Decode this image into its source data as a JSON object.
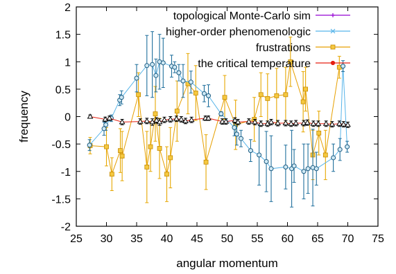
{
  "chart_data": {
    "type": "scatter",
    "xlabel": "angular momentum",
    "ylabel": "frequency",
    "xlim": [
      25,
      75
    ],
    "ylim": [
      -2,
      2
    ],
    "xticks": [
      25,
      30,
      35,
      40,
      45,
      50,
      55,
      60,
      65,
      70,
      75
    ],
    "yticks": [
      -2,
      -1.5,
      -1,
      -0.5,
      0,
      0.5,
      1,
      1.5,
      2
    ],
    "grid": false,
    "legend_position": "top-right",
    "series": [
      {
        "name": "topological Monte-Carlo sim",
        "color": "#9400d3",
        "marker": "plus",
        "points": []
      },
      {
        "name": "higher-order phenomenologic",
        "color": "#56b4e9",
        "marker": "circle",
        "points": [
          {
            "x": 27.2,
            "y": -0.52,
            "err": 0.1
          },
          {
            "x": 29.6,
            "y": -0.22,
            "err": 0.12
          },
          {
            "x": 29.9,
            "y": -0.15,
            "err": 0.1
          },
          {
            "x": 30.8,
            "y": -0.03,
            "err": 0.06
          },
          {
            "x": 32.2,
            "y": 0.3,
            "err": 0.1
          },
          {
            "x": 32.5,
            "y": 0.35,
            "err": 0.12
          },
          {
            "x": 35.0,
            "y": 0.7,
            "err": 0.25
          },
          {
            "x": 36.7,
            "y": 0.93,
            "err": 0.55
          },
          {
            "x": 37.6,
            "y": 0.95,
            "err": 0.6
          },
          {
            "x": 38.2,
            "y": 0.75,
            "err": 0.3
          },
          {
            "x": 38.8,
            "y": 1.0,
            "err": 0.5
          },
          {
            "x": 39.4,
            "y": 0.98,
            "err": 0.45
          },
          {
            "x": 40.8,
            "y": 0.92,
            "err": 0.2
          },
          {
            "x": 41.3,
            "y": 0.9,
            "err": 0.1
          },
          {
            "x": 42.0,
            "y": 0.8,
            "err": 0.15
          },
          {
            "x": 42.7,
            "y": 0.65,
            "err": 0.3
          },
          {
            "x": 44.0,
            "y": 0.63,
            "err": 0.2
          },
          {
            "x": 46.2,
            "y": 0.42,
            "err": 0.15
          },
          {
            "x": 46.9,
            "y": 0.38,
            "err": 0.2
          },
          {
            "x": 49.0,
            "y": 0.05,
            "err": 0.04
          },
          {
            "x": 51.2,
            "y": -0.2,
            "err": 0.15
          },
          {
            "x": 51.6,
            "y": -0.32,
            "err": 0.2
          },
          {
            "x": 52.3,
            "y": -0.4,
            "err": 0.15
          },
          {
            "x": 53.9,
            "y": -0.62,
            "err": 0.2
          },
          {
            "x": 55.3,
            "y": -0.7,
            "err": 0.55
          },
          {
            "x": 56.5,
            "y": -0.82,
            "err": 0.55
          },
          {
            "x": 57.3,
            "y": -0.95,
            "err": 0.6
          },
          {
            "x": 59.7,
            "y": -0.92,
            "err": 0.4
          },
          {
            "x": 60.7,
            "y": -0.95,
            "err": 0.7
          },
          {
            "x": 61.1,
            "y": -0.9,
            "err": 0.3
          },
          {
            "x": 62.7,
            "y": -1.0,
            "err": 0.5
          },
          {
            "x": 63.4,
            "y": -0.95,
            "err": 0.45
          },
          {
            "x": 64.2,
            "y": -0.93,
            "err": 0.7
          },
          {
            "x": 64.8,
            "y": -0.95,
            "err": 0.3
          },
          {
            "x": 67.6,
            "y": -0.75,
            "err": 0.25
          },
          {
            "x": 68.7,
            "y": -0.6,
            "err": 0.2
          },
          {
            "x": 69.2,
            "y": 0.92,
            "err": 0.1
          },
          {
            "x": 69.9,
            "y": -0.55,
            "err": 0.1
          }
        ]
      },
      {
        "name": "frustrations",
        "color": "#e69f00",
        "marker": "square",
        "points": [
          {
            "x": 27.3,
            "y": -0.53,
            "err": 0.15
          },
          {
            "x": 30.0,
            "y": -0.55,
            "err": 0.35
          },
          {
            "x": 30.9,
            "y": -1.05,
            "err": 0.3
          },
          {
            "x": 32.3,
            "y": -0.62,
            "err": 0.4
          },
          {
            "x": 32.6,
            "y": -0.72,
            "err": 0.45
          },
          {
            "x": 35.3,
            "y": 0.4,
            "err": 0.4
          },
          {
            "x": 36.7,
            "y": -0.92,
            "err": 0.65
          },
          {
            "x": 37.3,
            "y": -0.55,
            "err": 0.45
          },
          {
            "x": 38.1,
            "y": 0.05,
            "err": 0.5
          },
          {
            "x": 38.8,
            "y": -0.58,
            "err": 0.55
          },
          {
            "x": 40.0,
            "y": -1.05,
            "err": 0.5
          },
          {
            "x": 40.6,
            "y": -0.75,
            "err": 0.55
          },
          {
            "x": 41.7,
            "y": 0.1,
            "err": 0.55
          },
          {
            "x": 43.5,
            "y": 0.6,
            "err": 0.55
          },
          {
            "x": 44.8,
            "y": 0.43,
            "err": 0.5
          },
          {
            "x": 46.5,
            "y": -0.83,
            "err": 0.5
          },
          {
            "x": 49.6,
            "y": 0.35,
            "err": 0.4
          },
          {
            "x": 51.4,
            "y": -0.15,
            "err": 0.45
          },
          {
            "x": 54.5,
            "y": -0.05,
            "err": 0.4
          },
          {
            "x": 55.6,
            "y": 0.4,
            "err": 0.4
          },
          {
            "x": 56.7,
            "y": 0.33,
            "err": 0.45
          },
          {
            "x": 58.2,
            "y": 0.38,
            "err": 0.5
          },
          {
            "x": 59.7,
            "y": 0.4,
            "err": 0.5
          },
          {
            "x": 60.5,
            "y": 1.0,
            "err": 0.45
          },
          {
            "x": 62.6,
            "y": 0.27,
            "err": 0.55
          },
          {
            "x": 63.0,
            "y": 0.5,
            "err": 0.4
          },
          {
            "x": 64.2,
            "y": -0.7,
            "err": 0.45
          },
          {
            "x": 65.2,
            "y": -0.3,
            "err": 0.4
          },
          {
            "x": 66.3,
            "y": -0.7,
            "err": 0.45
          },
          {
            "x": 68.6,
            "y": 0.9,
            "err": 0.2
          }
        ]
      },
      {
        "name": "the critical temperature",
        "color": "#e51e10",
        "marker": "triangle",
        "points": [
          {
            "x": 27.3,
            "y": 0.0,
            "err": 0.03
          },
          {
            "x": 29.8,
            "y": -0.05,
            "err": 0.04
          },
          {
            "x": 30.5,
            "y": -0.03,
            "err": 0.04
          },
          {
            "x": 32.6,
            "y": -0.1,
            "err": 0.05
          },
          {
            "x": 35.6,
            "y": -0.09,
            "err": 0.05
          },
          {
            "x": 36.7,
            "y": -0.08,
            "err": 0.05
          },
          {
            "x": 37.6,
            "y": -0.1,
            "err": 0.06
          },
          {
            "x": 38.3,
            "y": -0.07,
            "err": 0.05
          },
          {
            "x": 38.8,
            "y": -0.1,
            "err": 0.06
          },
          {
            "x": 39.6,
            "y": -0.06,
            "err": 0.05
          },
          {
            "x": 40.6,
            "y": -0.05,
            "err": 0.05
          },
          {
            "x": 41.6,
            "y": -0.04,
            "err": 0.05
          },
          {
            "x": 42.4,
            "y": -0.05,
            "err": 0.05
          },
          {
            "x": 43.1,
            "y": -0.08,
            "err": 0.05
          },
          {
            "x": 44.1,
            "y": -0.06,
            "err": 0.05
          },
          {
            "x": 46.4,
            "y": -0.03,
            "err": 0.04
          },
          {
            "x": 46.9,
            "y": -0.03,
            "err": 0.04
          },
          {
            "x": 49.2,
            "y": -0.09,
            "err": 0.05
          },
          {
            "x": 49.8,
            "y": -0.09,
            "err": 0.05
          },
          {
            "x": 51.3,
            "y": -0.07,
            "err": 0.05
          },
          {
            "x": 51.8,
            "y": -0.1,
            "err": 0.05
          },
          {
            "x": 53.6,
            "y": -0.09,
            "err": 0.05
          },
          {
            "x": 54.6,
            "y": -0.1,
            "err": 0.05
          },
          {
            "x": 55.6,
            "y": -0.13,
            "err": 0.05
          },
          {
            "x": 56.7,
            "y": -0.13,
            "err": 0.05
          },
          {
            "x": 57.3,
            "y": -0.1,
            "err": 0.05
          },
          {
            "x": 58.4,
            "y": -0.12,
            "err": 0.05
          },
          {
            "x": 59.7,
            "y": -0.12,
            "err": 0.05
          },
          {
            "x": 60.6,
            "y": -0.13,
            "err": 0.05
          },
          {
            "x": 61.4,
            "y": -0.12,
            "err": 0.05
          },
          {
            "x": 62.7,
            "y": -0.12,
            "err": 0.05
          },
          {
            "x": 63.3,
            "y": -0.11,
            "err": 0.05
          },
          {
            "x": 64.3,
            "y": -0.13,
            "err": 0.05
          },
          {
            "x": 65.1,
            "y": -0.13,
            "err": 0.05
          },
          {
            "x": 66.4,
            "y": -0.13,
            "err": 0.05
          },
          {
            "x": 67.4,
            "y": -0.14,
            "err": 0.05
          },
          {
            "x": 68.6,
            "y": -0.13,
            "err": 0.05
          },
          {
            "x": 69.3,
            "y": -0.14,
            "err": 0.05
          },
          {
            "x": 70.0,
            "y": -0.15,
            "err": 0.05
          }
        ]
      }
    ]
  }
}
